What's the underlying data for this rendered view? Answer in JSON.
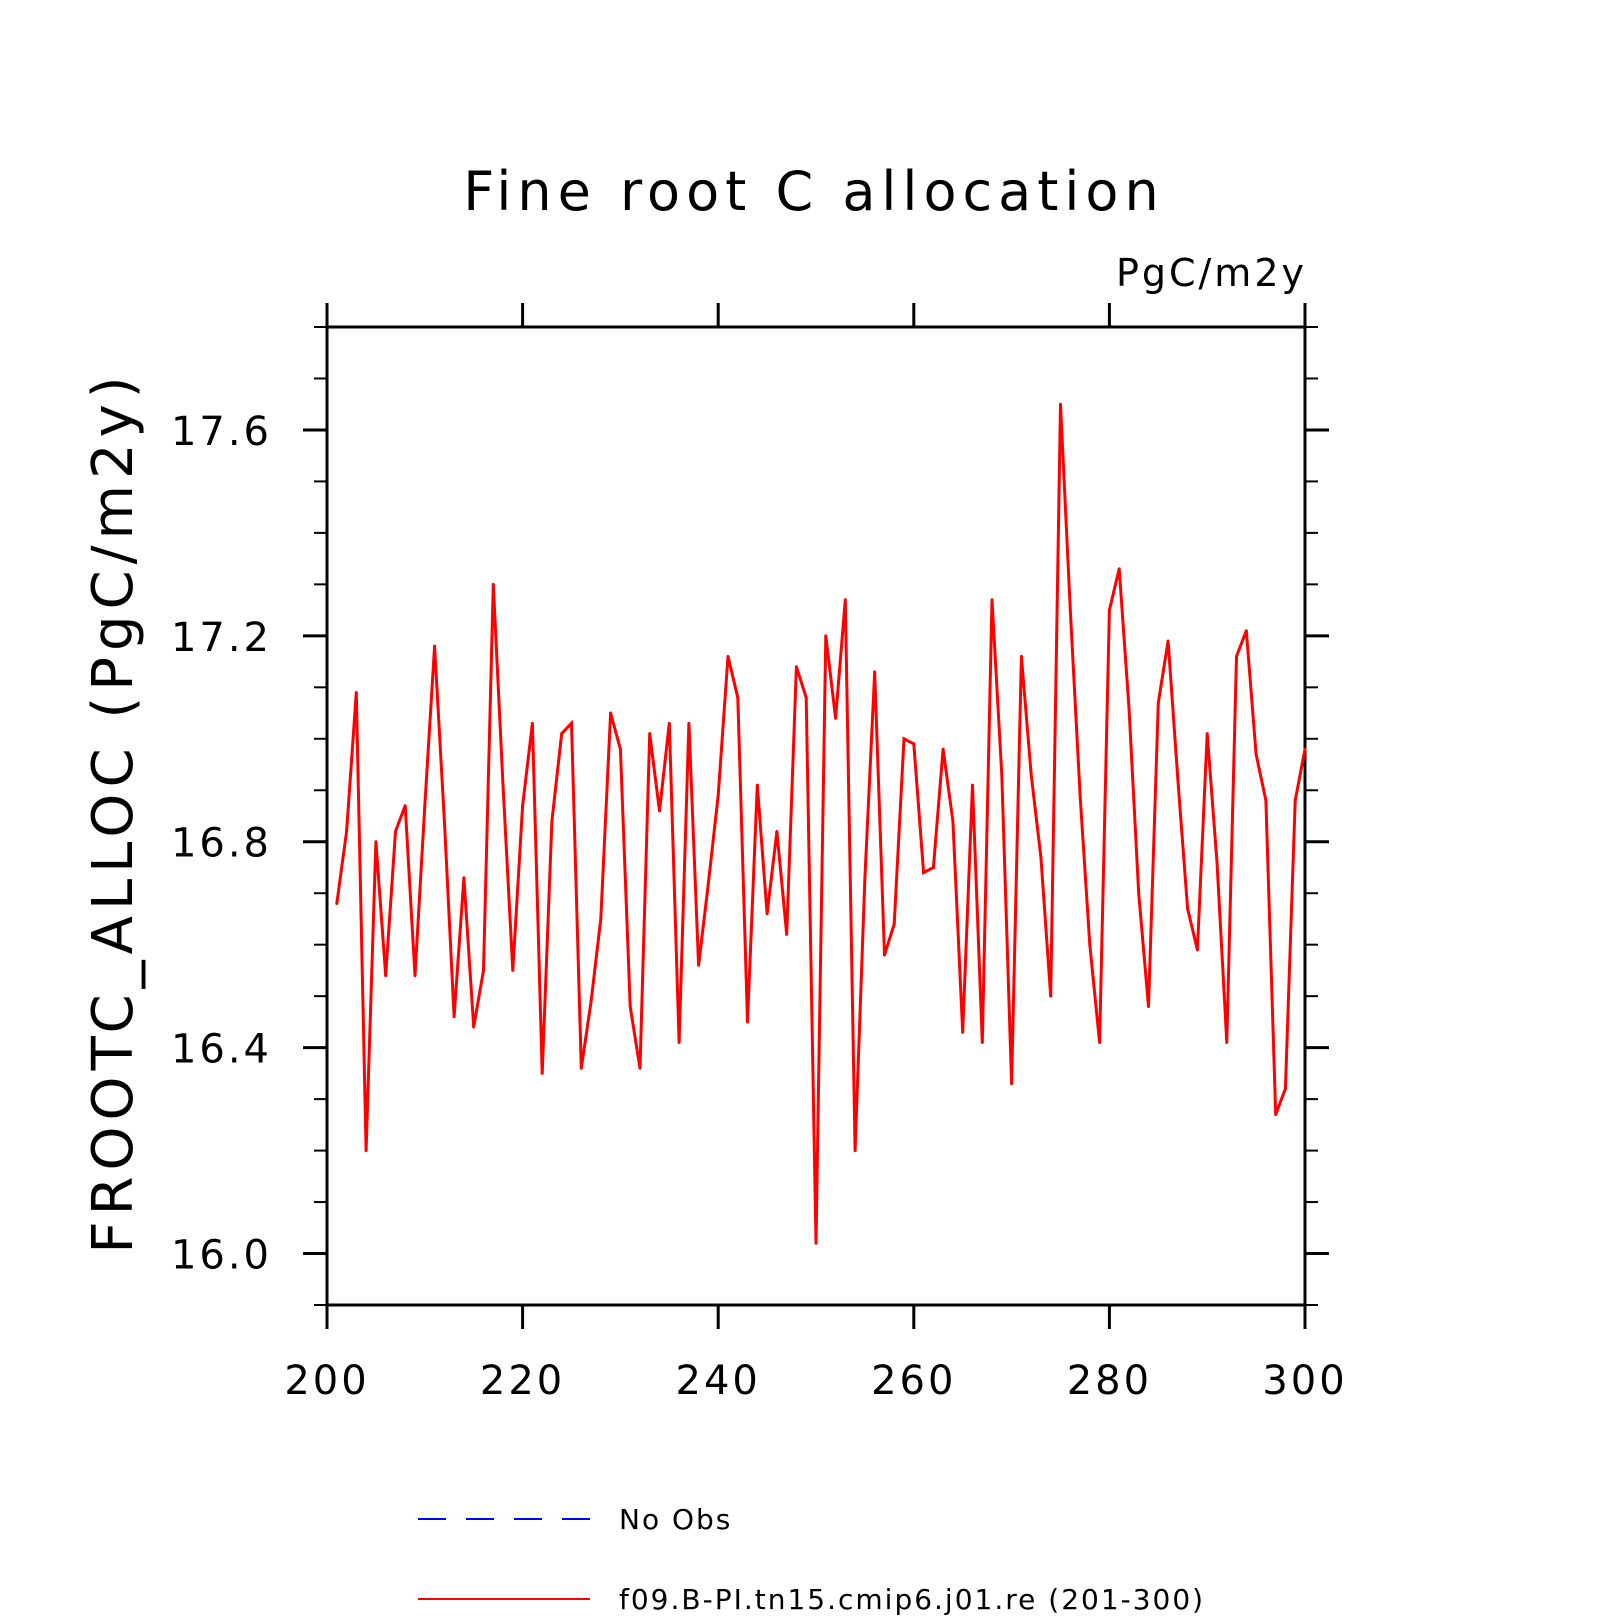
{
  "chart_data": {
    "type": "line",
    "title": "Fine root C allocation",
    "units": "PgC/m2y",
    "xlabel": "",
    "ylabel": "FROOTC_ALLOC   (PgC/m2y)",
    "xlim": [
      200,
      300
    ],
    "ylim": [
      15.9,
      17.8
    ],
    "xticks": [
      200,
      220,
      240,
      260,
      280,
      300
    ],
    "xtick_labels": [
      "200",
      "220",
      "240",
      "260",
      "280",
      "300"
    ],
    "yticks": [
      16.0,
      16.4,
      16.8,
      17.2,
      17.6
    ],
    "ytick_labels": [
      "16.0",
      "16.4",
      "16.8",
      "17.2",
      "17.6"
    ],
    "grid": false,
    "legend_placement": "bottom",
    "series": [
      {
        "name": "No Obs",
        "color": "#0000ff",
        "dash": true,
        "x": [],
        "y": []
      },
      {
        "name": "f09.B-PI.tn15.cmip6.j01.re (201-300)",
        "color": "#ff0000",
        "dash": false,
        "x": [
          201,
          202,
          203,
          204,
          205,
          206,
          207,
          208,
          209,
          210,
          211,
          212,
          213,
          214,
          215,
          216,
          217,
          218,
          219,
          220,
          221,
          222,
          223,
          224,
          225,
          226,
          227,
          228,
          229,
          230,
          231,
          232,
          233,
          234,
          235,
          236,
          237,
          238,
          239,
          240,
          241,
          242,
          243,
          244,
          245,
          246,
          247,
          248,
          249,
          250,
          251,
          252,
          253,
          254,
          255,
          256,
          257,
          258,
          259,
          260,
          261,
          262,
          263,
          264,
          265,
          266,
          267,
          268,
          269,
          270,
          271,
          272,
          273,
          274,
          275,
          276,
          277,
          278,
          279,
          280,
          281,
          282,
          283,
          284,
          285,
          286,
          287,
          288,
          289,
          290,
          291,
          292,
          293,
          294,
          295,
          296,
          297,
          298,
          299,
          300
        ],
        "y": [
          16.68,
          16.82,
          17.09,
          16.2,
          16.8,
          16.54,
          16.82,
          16.87,
          16.54,
          16.87,
          17.18,
          16.84,
          16.46,
          16.73,
          16.44,
          16.55,
          17.3,
          16.91,
          16.55,
          16.87,
          17.03,
          16.35,
          16.84,
          17.01,
          17.03,
          16.36,
          16.49,
          16.65,
          17.05,
          16.98,
          16.48,
          16.36,
          17.01,
          16.86,
          17.03,
          16.41,
          17.03,
          16.56,
          16.72,
          16.89,
          17.16,
          17.08,
          16.45,
          16.91,
          16.66,
          16.82,
          16.62,
          17.14,
          17.08,
          16.02,
          17.2,
          17.04,
          17.27,
          16.2,
          16.73,
          17.13,
          16.58,
          16.64,
          17.0,
          16.99,
          16.74,
          16.75,
          16.98,
          16.84,
          16.43,
          16.91,
          16.41,
          17.27,
          16.93,
          16.33,
          17.16,
          16.93,
          16.77,
          16.5,
          17.65,
          17.25,
          16.89,
          16.6,
          16.41,
          17.25,
          17.33,
          17.06,
          16.7,
          16.48,
          17.07,
          17.19,
          16.92,
          16.67,
          16.59,
          17.01,
          16.76,
          16.41,
          17.16,
          17.21,
          16.97,
          16.88,
          16.27,
          16.32,
          16.88,
          16.98
        ]
      }
    ]
  }
}
